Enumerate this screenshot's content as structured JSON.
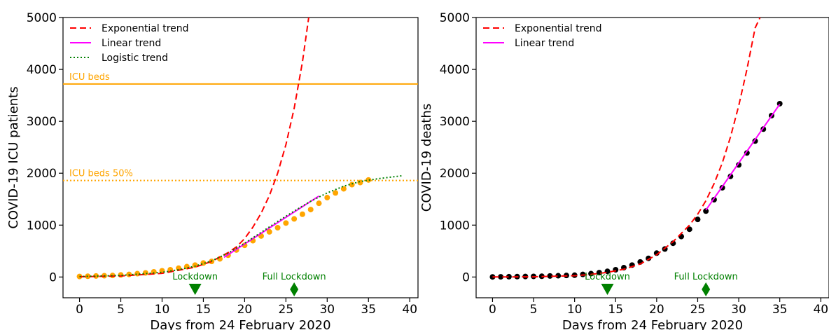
{
  "colors": {
    "exponential": "#ff0000",
    "linear": "#ff00ff",
    "logistic": "#008000",
    "icu_points": "#ffa500",
    "death_points": "#000000",
    "icu_lines": "#ffa500",
    "lockdown": "#008000"
  },
  "chart_data": [
    {
      "type": "scatter",
      "xlabel": "Days from 24 February 2020",
      "ylabel": "COVID-19 ICU patients",
      "xlim": [
        -2,
        41
      ],
      "ylim": [
        -400,
        5000
      ],
      "xticks": [
        0,
        5,
        10,
        15,
        20,
        25,
        30,
        35,
        40
      ],
      "yticks": [
        0,
        1000,
        2000,
        3000,
        4000,
        5000
      ],
      "legend_position": "top-left",
      "legend": [
        "Exponential trend",
        "Linear trend",
        "Logistic trend"
      ],
      "series": [
        {
          "name": "ICU patients",
          "kind": "points",
          "x": [
            0,
            1,
            2,
            3,
            4,
            5,
            6,
            7,
            8,
            9,
            10,
            11,
            12,
            13,
            14,
            15,
            16,
            17,
            18,
            19,
            20,
            21,
            22,
            23,
            24,
            25,
            26,
            27,
            28,
            29,
            30,
            31,
            32,
            33,
            34,
            35
          ],
          "y": [
            10,
            15,
            20,
            25,
            30,
            40,
            50,
            65,
            80,
            100,
            120,
            140,
            170,
            200,
            230,
            270,
            300,
            350,
            420,
            520,
            610,
            700,
            790,
            870,
            950,
            1040,
            1120,
            1210,
            1300,
            1420,
            1530,
            1620,
            1700,
            1780,
            1820,
            1870
          ]
        },
        {
          "name": "Exponential trend",
          "kind": "curve",
          "x": [
            0,
            5,
            10,
            12,
            14,
            16,
            18,
            19,
            20,
            21,
            22,
            23,
            24,
            25,
            26,
            27,
            28,
            29
          ],
          "y": [
            5,
            20,
            70,
            130,
            190,
            300,
            470,
            580,
            740,
            960,
            1230,
            1570,
            2000,
            2550,
            3250,
            4140,
            5270,
            6700
          ]
        },
        {
          "name": "Linear trend",
          "kind": "line",
          "x": [
            17.5,
            29
          ],
          "y": [
            380,
            1560
          ]
        },
        {
          "name": "Logistic trend",
          "kind": "curve",
          "x": [
            0,
            5,
            10,
            12,
            14,
            16,
            18,
            20,
            22,
            24,
            26,
            28,
            30,
            32,
            34,
            36,
            38,
            39
          ],
          "y": [
            10,
            30,
            90,
            140,
            210,
            310,
            460,
            650,
            860,
            1070,
            1270,
            1460,
            1620,
            1750,
            1840,
            1890,
            1930,
            1950
          ]
        }
      ],
      "hlines": [
        {
          "y": 3720,
          "label": "ICU beds",
          "style": "solid"
        },
        {
          "y": 1860,
          "label": "ICU beds 50%",
          "style": "dotted"
        }
      ],
      "markers": [
        {
          "x": 14,
          "label": "Lockdown",
          "shape": "triangle-down"
        },
        {
          "x": 26,
          "label": "Full Lockdown",
          "shape": "diamond"
        }
      ]
    },
    {
      "type": "scatter",
      "xlabel": "Days from 24 February 2020",
      "ylabel": "COVID-19 deaths",
      "xlim": [
        -2,
        41
      ],
      "ylim": [
        -400,
        5000
      ],
      "xticks": [
        0,
        5,
        10,
        15,
        20,
        25,
        30,
        35,
        40
      ],
      "yticks": [
        0,
        1000,
        2000,
        3000,
        4000,
        5000
      ],
      "legend_position": "top-left",
      "legend": [
        "Exponential trend",
        "Linear trend"
      ],
      "series": [
        {
          "name": "deaths",
          "kind": "points",
          "x": [
            0,
            1,
            2,
            3,
            4,
            5,
            6,
            7,
            8,
            9,
            10,
            11,
            12,
            13,
            14,
            15,
            16,
            17,
            18,
            19,
            20,
            21,
            22,
            23,
            24,
            25,
            26,
            27,
            28,
            29,
            30,
            31,
            32,
            33,
            34,
            35
          ],
          "y": [
            2,
            4,
            6,
            8,
            10,
            12,
            15,
            20,
            25,
            30,
            35,
            50,
            65,
            85,
            110,
            140,
            180,
            230,
            290,
            360,
            460,
            540,
            650,
            780,
            920,
            1110,
            1270,
            1490,
            1720,
            1940,
            2160,
            2390,
            2620,
            2850,
            3110,
            3340
          ]
        },
        {
          "name": "Exponential trend",
          "kind": "curve",
          "x": [
            0,
            5,
            10,
            12,
            14,
            16,
            18,
            20,
            22,
            24,
            25,
            26,
            27,
            28,
            29,
            30,
            31,
            32,
            32.6
          ],
          "y": [
            1,
            4,
            25,
            50,
            90,
            150,
            250,
            430,
            680,
            1000,
            1210,
            1470,
            1800,
            2200,
            2700,
            3300,
            4000,
            4800,
            5000
          ]
        },
        {
          "name": "Linear trend",
          "kind": "line",
          "x": [
            26,
            35
          ],
          "y": [
            1290,
            3330
          ]
        }
      ],
      "markers": [
        {
          "x": 14,
          "label": "Lockdown",
          "shape": "triangle-down"
        },
        {
          "x": 26,
          "label": "Full Lockdown",
          "shape": "diamond"
        }
      ]
    }
  ]
}
